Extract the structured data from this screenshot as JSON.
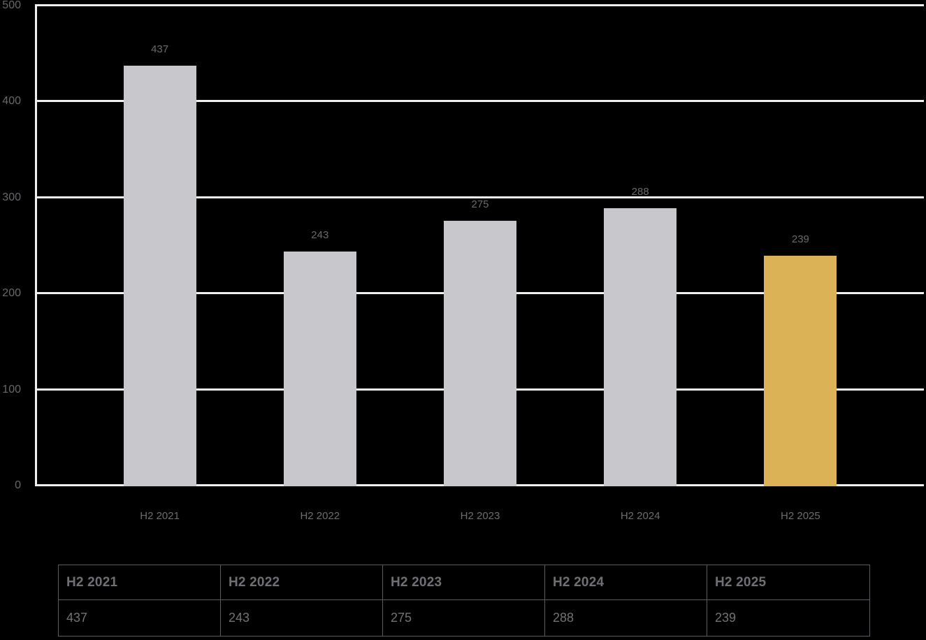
{
  "chart_data": {
    "type": "bar",
    "categories": [
      "H2 2021",
      "H2 2022",
      "H2 2023",
      "H2 2024",
      "H2 2025"
    ],
    "values": [
      437,
      243,
      275,
      288,
      239
    ],
    "title": "",
    "xlabel": "",
    "ylabel": "",
    "ylim": [
      0,
      500
    ],
    "yticks": [
      0,
      100,
      200,
      300,
      400,
      500
    ],
    "grid": true,
    "legend_position": "none",
    "bar_default_color": "#c8c7cb",
    "bar_highlight_color": "#dbb356",
    "highlight_index": 4,
    "value_labels_shown": true
  },
  "table": {
    "headers": [
      "H2 2021",
      "H2 2022",
      "H2 2023",
      "H2 2024",
      "H2 2025"
    ],
    "values": [
      "437",
      "243",
      "275",
      "288",
      "239"
    ]
  },
  "colors": {
    "background": "#000000",
    "grid_line": "#f2f0ee",
    "axis_line": "#f2f0ee",
    "tick_label_text": "#68686d",
    "bar_value_label_text": "#6a6a6f",
    "x_axis_label_text": "#6d6d72",
    "table_border": "#5b5c61",
    "table_header_text": "#6f7075",
    "table_value_text": "#737378"
  }
}
